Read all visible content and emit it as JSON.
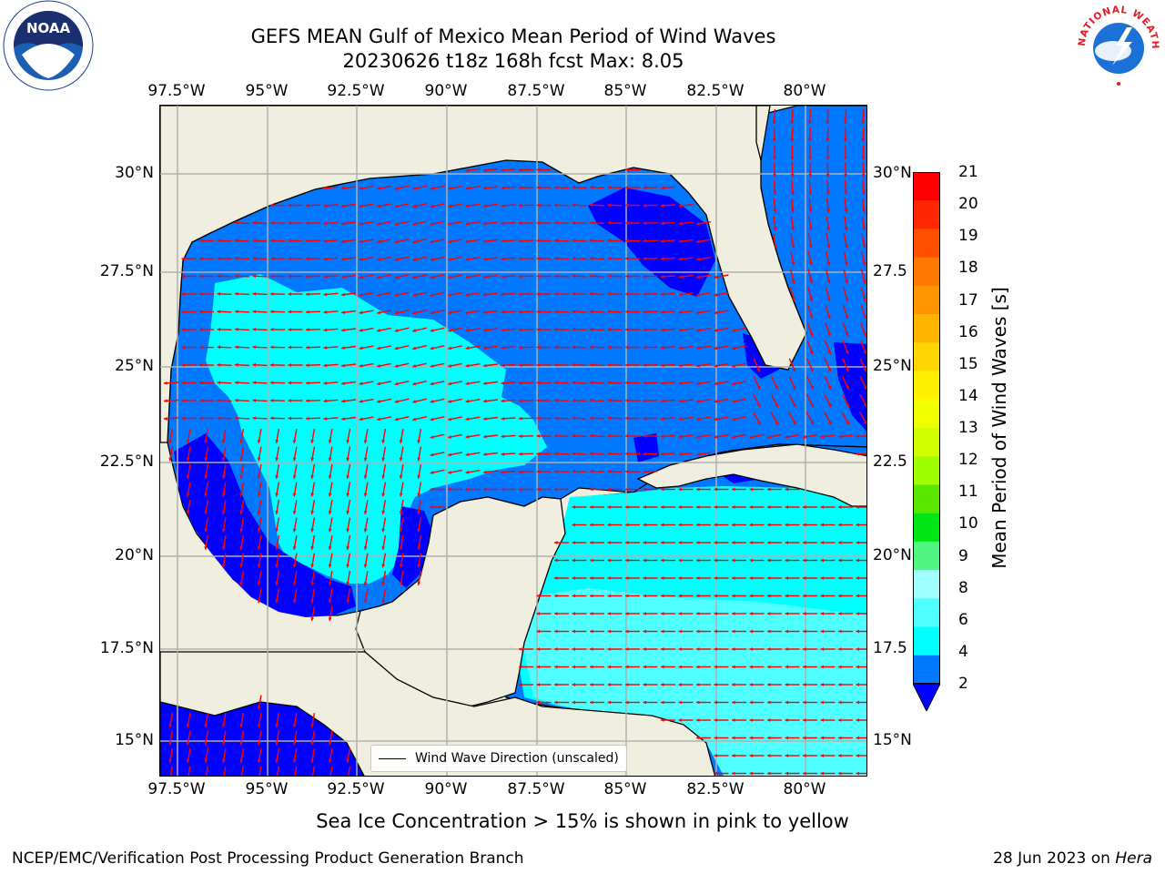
{
  "title_line1": "GEFS MEAN Gulf of Mexico Mean Period of Wind Waves",
  "title_line2": "20230626 t18z 168h fcst   Max: 8.05",
  "lon_ticks": [
    "97.5°W",
    "95°W",
    "92.5°W",
    "90°W",
    "87.5°W",
    "85°W",
    "82.5°W",
    "80°W"
  ],
  "lat_ticks_left": [
    "30°N",
    "27.5°N",
    "25°N",
    "22.5°N",
    "20°N",
    "17.5°N",
    "15°N"
  ],
  "lat_ticks_right": [
    "30°N",
    "27.5",
    "25°N",
    "22.5",
    "20°N",
    "17.5",
    "15°N"
  ],
  "legend_label": "Wind Wave Direction (unscaled)",
  "colorbar": {
    "label": "Mean Period of Wind Waves [s]",
    "ticks": [
      "21",
      "20",
      "19",
      "18",
      "17",
      "16",
      "15",
      "14",
      "13",
      "12",
      "11",
      "10",
      "9",
      "8",
      "6",
      "4",
      "2"
    ],
    "colors": [
      "#ff0000",
      "#ff2800",
      "#ff5000",
      "#ff7800",
      "#ff9600",
      "#ffb400",
      "#ffd700",
      "#fff000",
      "#f0ff00",
      "#d2ff00",
      "#a0ff00",
      "#5ae600",
      "#00e614",
      "#50f582",
      "#a0ffff",
      "#50ffff",
      "#00ffff",
      "#0078ff"
    ],
    "extend_color": "#0000ff"
  },
  "ice_note": "Sea Ice Concentration > 15% is shown in pink to yellow",
  "footer_left": "NCEP/EMC/Verification Post Processing Product Generation Branch",
  "footer_right_prefix": "28 Jun 2023 on ",
  "footer_right_host": "Hera",
  "logos": {
    "left": "NOAA",
    "right": "NATIONAL WEATHER SERVICE"
  },
  "colors": {
    "land": "#f0eede",
    "wave_2_4": "#0078ff",
    "wave_4_6": "#00ffff",
    "wave_6_8": "#50ffff",
    "below_2": "#0000ff",
    "arrow": "#ff0000",
    "grid": "#b0b0b0"
  }
}
